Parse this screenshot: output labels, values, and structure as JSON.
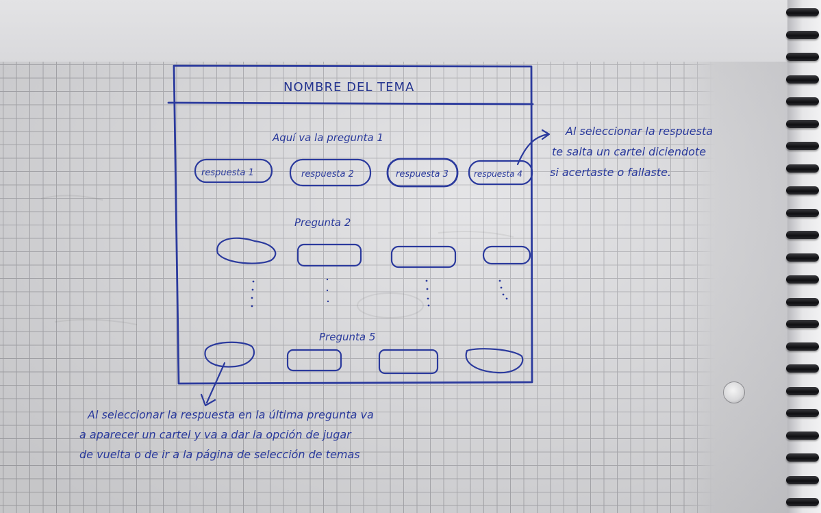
{
  "sketch": {
    "header_title": "NOMBRE DEL TEMA",
    "question_1": {
      "label": "Aquí va la pregunta 1",
      "answers": [
        "respuesta 1",
        "respuesta 2",
        "respuesta 3",
        "respuesta 4"
      ]
    },
    "question_2": {
      "label": "Pregunta 2"
    },
    "question_5": {
      "label": "Pregunta 5"
    }
  },
  "notes": {
    "right_note": [
      "Al seleccionar la respuesta",
      "te salta un cartel diciendote",
      "si acertaste o fallaste."
    ],
    "bottom_note": [
      "Al seleccionar la respuesta en la última pregunta va",
      "a aparecer un cartel y va a dar la opción de jugar",
      "de vuelta o de ir a la página de selección de temas"
    ]
  },
  "colors": {
    "ink": "#2b3a9d",
    "paper": "#dcdcdf",
    "grid": "#a9a9ae",
    "spiral": "#121215"
  }
}
